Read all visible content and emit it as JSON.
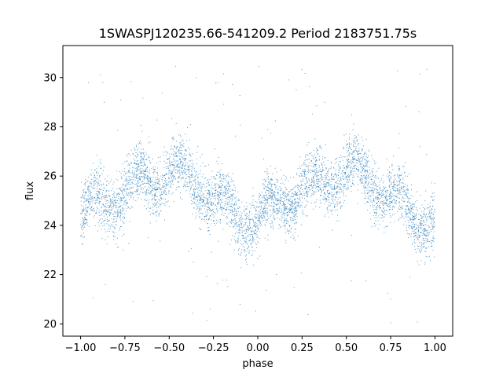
{
  "chart_data": {
    "type": "scatter",
    "title": "1SWASPJ120235.66-541209.2 Period 2183751.75s",
    "xlabel": "phase",
    "ylabel": "flux",
    "xlim": [
      -1.1,
      1.1
    ],
    "ylim": [
      19.5,
      31.3
    ],
    "xticks": [
      -1.0,
      -0.75,
      -0.5,
      -0.25,
      0.0,
      0.25,
      0.5,
      0.75,
      1.0
    ],
    "xtick_labels": [
      "−1.00",
      "−0.75",
      "−0.50",
      "−0.25",
      "0.00",
      "0.25",
      "0.50",
      "0.75",
      "1.00"
    ],
    "yticks": [
      20,
      22,
      24,
      26,
      28,
      30
    ],
    "ytick_labels": [
      "20",
      "22",
      "24",
      "26",
      "28",
      "30"
    ],
    "grid": false,
    "point_color": "#1f77b4",
    "phase_range": [
      -1.0,
      1.0
    ],
    "profile": {
      "phase": [
        0.0,
        0.1,
        0.2,
        0.3,
        0.4,
        0.5,
        0.6,
        0.7,
        0.8,
        0.9,
        1.0
      ],
      "median_flux": [
        24.3,
        24.8,
        25.3,
        25.5,
        25.9,
        26.2,
        26.0,
        25.6,
        24.8,
        24.3,
        24.3
      ]
    },
    "scatter_spread": 0.8,
    "outlier_range": [
      20.0,
      30.6
    ]
  }
}
